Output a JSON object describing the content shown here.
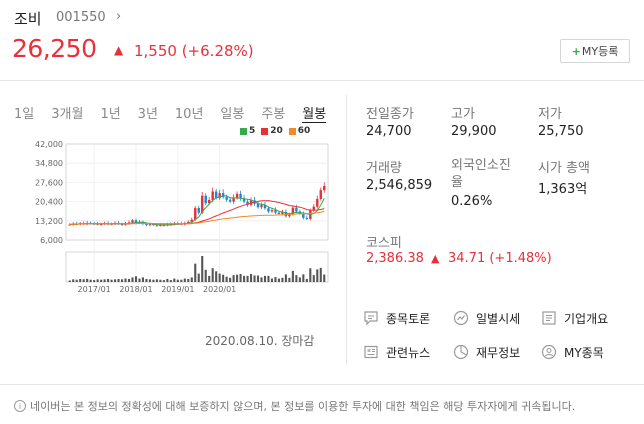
{
  "stock": {
    "name": "조비",
    "code": "001550",
    "price": "26,250",
    "change": "1,550 (+6.28%)"
  },
  "my_button": {
    "plus": "+",
    "label": "MY등록"
  },
  "period_tabs": [
    "1일",
    "3개월",
    "1년",
    "3년",
    "10년",
    "일봉",
    "주봉",
    "월봉"
  ],
  "active_tab": "월봉",
  "colors": {
    "up": "#e8303a",
    "down": "#1d86d8",
    "ma5": "#3aa84e",
    "ma20": "#e8303a",
    "ma60": "#f08a24"
  },
  "chart_data": {
    "type": "candlestick",
    "legend": [
      "5",
      "20",
      "60"
    ],
    "y_ticks": [
      "42,000",
      "34,800",
      "27,600",
      "20,400",
      "13,200",
      "6,000"
    ],
    "x_ticks": [
      "2017/01",
      "2018/01",
      "2019/01",
      "2020/01"
    ],
    "ylim": [
      6000,
      42000
    ],
    "close": [
      11800,
      12100,
      11900,
      12300,
      12000,
      12400,
      12200,
      12100,
      11800,
      12000,
      12300,
      11900,
      12100,
      12400,
      12000,
      11700,
      12200,
      12600,
      13400,
      12300,
      12800,
      12000,
      11600,
      11900,
      11700,
      11400,
      11600,
      11500,
      11900,
      11800,
      12300,
      12100,
      11900,
      12400,
      12800,
      13600,
      18000,
      16200,
      22600,
      19800,
      21000,
      24200,
      21800,
      23600,
      22100,
      21100,
      20400,
      21800,
      23300,
      21600,
      20400,
      19200,
      20900,
      19600,
      18300,
      19100,
      17900,
      16700,
      17200,
      16300,
      15800,
      16500,
      14900,
      15600,
      18100,
      16700,
      15900,
      14300,
      13900,
      17100,
      18500,
      21400,
      24700,
      26250
    ],
    "date": "2020.08.10. 장마감"
  },
  "stats": {
    "prev_close": {
      "label": "전일종가",
      "value": "24,700"
    },
    "high": {
      "label": "고가",
      "value": "29,900"
    },
    "low": {
      "label": "저가",
      "value": "25,750"
    },
    "volume": {
      "label": "거래량",
      "value": "2,546,859"
    },
    "foreign": {
      "label": "외국인소진율",
      "label_line1": "외국인소진",
      "label_line2": "율",
      "value": "0.26%"
    },
    "market_cap": {
      "label": "시가 총액",
      "value": "1,363억"
    }
  },
  "kospi": {
    "label": "코스피",
    "value": "2,386.38",
    "change": "34.71 (+1.48%)"
  },
  "menu": [
    {
      "icon": "discussion-icon",
      "label": "종목토론"
    },
    {
      "icon": "daily-quote-icon",
      "label": "일별시세"
    },
    {
      "icon": "company-overview-icon",
      "label": "기업개요"
    },
    {
      "icon": "related-news-icon",
      "label": "관련뉴스"
    },
    {
      "icon": "financial-info-icon",
      "label": "재무정보"
    },
    {
      "icon": "my-stock-icon",
      "label": "MY종목"
    }
  ],
  "disclaimer": "네이버는 본 정보의 정확성에 대해 보증하지 않으며, 본 정보를 이용한 투자에 대한 책임은 해당 투자자에게 귀속됩니다."
}
